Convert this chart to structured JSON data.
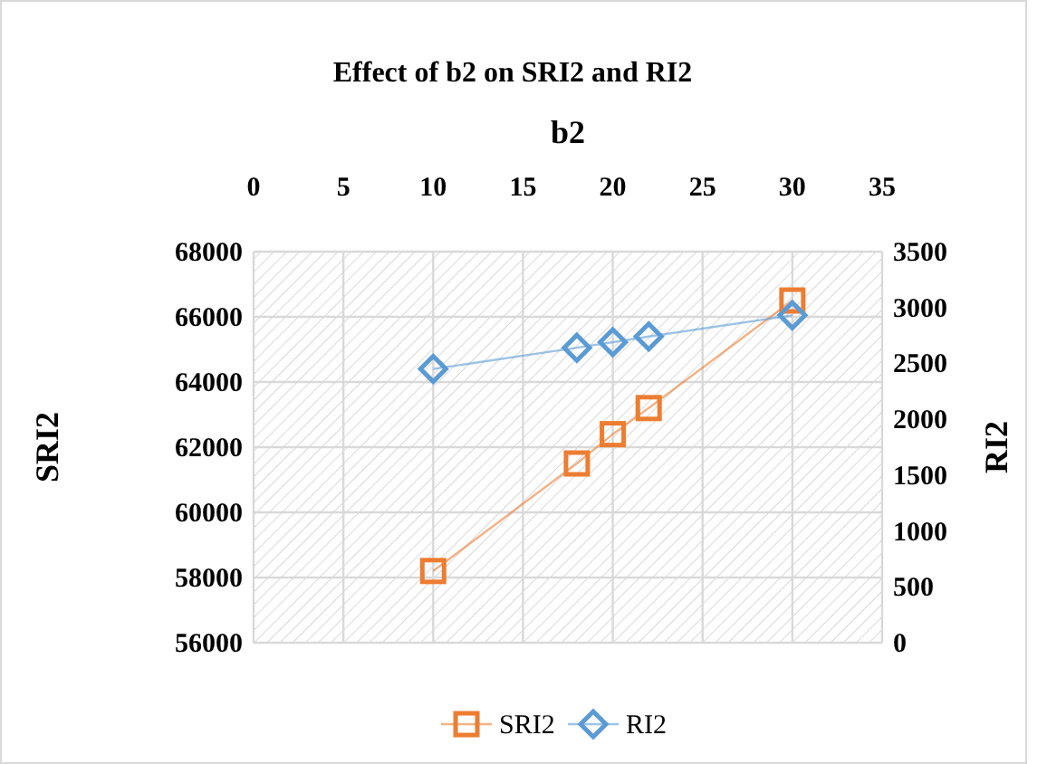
{
  "chart_data": {
    "type": "line",
    "title": "Effect of b2 on SRI2 and RI2",
    "xlabel": "b2",
    "ylabel": "SRI2",
    "y2label": "RI2",
    "x": [
      10,
      18,
      20,
      22,
      30
    ],
    "xlim": [
      0,
      35
    ],
    "xticks": [
      0,
      5,
      10,
      15,
      20,
      25,
      30,
      35
    ],
    "ylim": [
      56000,
      68000
    ],
    "yticks": [
      56000,
      58000,
      60000,
      62000,
      64000,
      66000,
      68000
    ],
    "y2lim": [
      0,
      3500
    ],
    "y2ticks": [
      0,
      500,
      1000,
      1500,
      2000,
      2500,
      3000,
      3500
    ],
    "series": [
      {
        "name": "SRI2",
        "color": "#ed7d31",
        "marker": "square",
        "values": [
          58200,
          61500,
          62400,
          63200,
          66500
        ]
      },
      {
        "name": "RI2",
        "color": "#5b9bd5",
        "marker": "diamond",
        "axis": "y2",
        "values": [
          2450,
          2640,
          2690,
          2740,
          2930
        ]
      }
    ],
    "grid": true,
    "legend": "bottom"
  }
}
